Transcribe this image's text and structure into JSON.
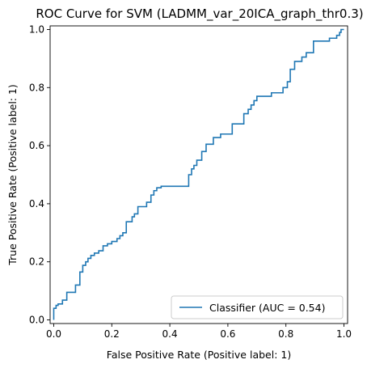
{
  "chart_data": {
    "type": "line",
    "title": "ROC Curve for SVM (LADMM_var_20ICA_graph_thr0.3)",
    "xlabel": "False Positive Rate (Positive label: 1)",
    "ylabel": "True Positive Rate (Positive label: 1)",
    "xlim": [
      0,
      1
    ],
    "ylim": [
      0,
      1
    ],
    "xticks": [
      "0.0",
      "0.2",
      "0.4",
      "0.6",
      "0.8",
      "1.0"
    ],
    "yticks": [
      "0.0",
      "0.2",
      "0.4",
      "0.6",
      "0.8",
      "1.0"
    ],
    "grid": false,
    "legend_position": "lower-right",
    "line_color": "#1f77b4",
    "series": [
      {
        "name": "Classifier (AUC = 0.54)",
        "x": [
          0.0,
          0.0,
          0.008,
          0.008,
          0.015,
          0.015,
          0.03,
          0.03,
          0.045,
          0.045,
          0.075,
          0.075,
          0.09,
          0.09,
          0.1,
          0.1,
          0.11,
          0.11,
          0.118,
          0.118,
          0.128,
          0.128,
          0.14,
          0.14,
          0.155,
          0.155,
          0.17,
          0.17,
          0.185,
          0.185,
          0.2,
          0.2,
          0.218,
          0.218,
          0.228,
          0.228,
          0.238,
          0.238,
          0.25,
          0.25,
          0.27,
          0.27,
          0.278,
          0.278,
          0.29,
          0.29,
          0.32,
          0.32,
          0.335,
          0.335,
          0.345,
          0.345,
          0.355,
          0.355,
          0.37,
          0.37,
          0.465,
          0.465,
          0.475,
          0.475,
          0.483,
          0.483,
          0.493,
          0.493,
          0.51,
          0.51,
          0.525,
          0.525,
          0.55,
          0.55,
          0.575,
          0.575,
          0.615,
          0.615,
          0.655,
          0.655,
          0.67,
          0.67,
          0.68,
          0.68,
          0.69,
          0.69,
          0.7,
          0.7,
          0.75,
          0.75,
          0.79,
          0.79,
          0.805,
          0.805,
          0.815,
          0.815,
          0.83,
          0.83,
          0.855,
          0.855,
          0.87,
          0.87,
          0.895,
          0.895,
          0.95,
          0.95,
          0.975,
          0.975,
          0.985,
          0.985,
          0.99,
          0.99,
          1.0
        ],
        "y": [
          0.0,
          0.04,
          0.04,
          0.05,
          0.05,
          0.055,
          0.055,
          0.068,
          0.068,
          0.095,
          0.095,
          0.12,
          0.12,
          0.165,
          0.165,
          0.188,
          0.188,
          0.2,
          0.2,
          0.212,
          0.212,
          0.222,
          0.222,
          0.23,
          0.23,
          0.238,
          0.238,
          0.255,
          0.255,
          0.262,
          0.262,
          0.27,
          0.27,
          0.28,
          0.28,
          0.29,
          0.29,
          0.3,
          0.3,
          0.338,
          0.338,
          0.355,
          0.355,
          0.365,
          0.365,
          0.39,
          0.39,
          0.405,
          0.405,
          0.43,
          0.43,
          0.445,
          0.445,
          0.455,
          0.455,
          0.46,
          0.46,
          0.5,
          0.5,
          0.52,
          0.52,
          0.532,
          0.532,
          0.55,
          0.55,
          0.58,
          0.58,
          0.605,
          0.605,
          0.628,
          0.628,
          0.64,
          0.64,
          0.675,
          0.675,
          0.71,
          0.71,
          0.725,
          0.725,
          0.74,
          0.74,
          0.755,
          0.755,
          0.77,
          0.77,
          0.782,
          0.782,
          0.8,
          0.8,
          0.82,
          0.82,
          0.863,
          0.863,
          0.89,
          0.89,
          0.905,
          0.905,
          0.92,
          0.92,
          0.96,
          0.96,
          0.97,
          0.97,
          0.98,
          0.98,
          0.99,
          0.99,
          1.0,
          1.0
        ]
      }
    ]
  }
}
